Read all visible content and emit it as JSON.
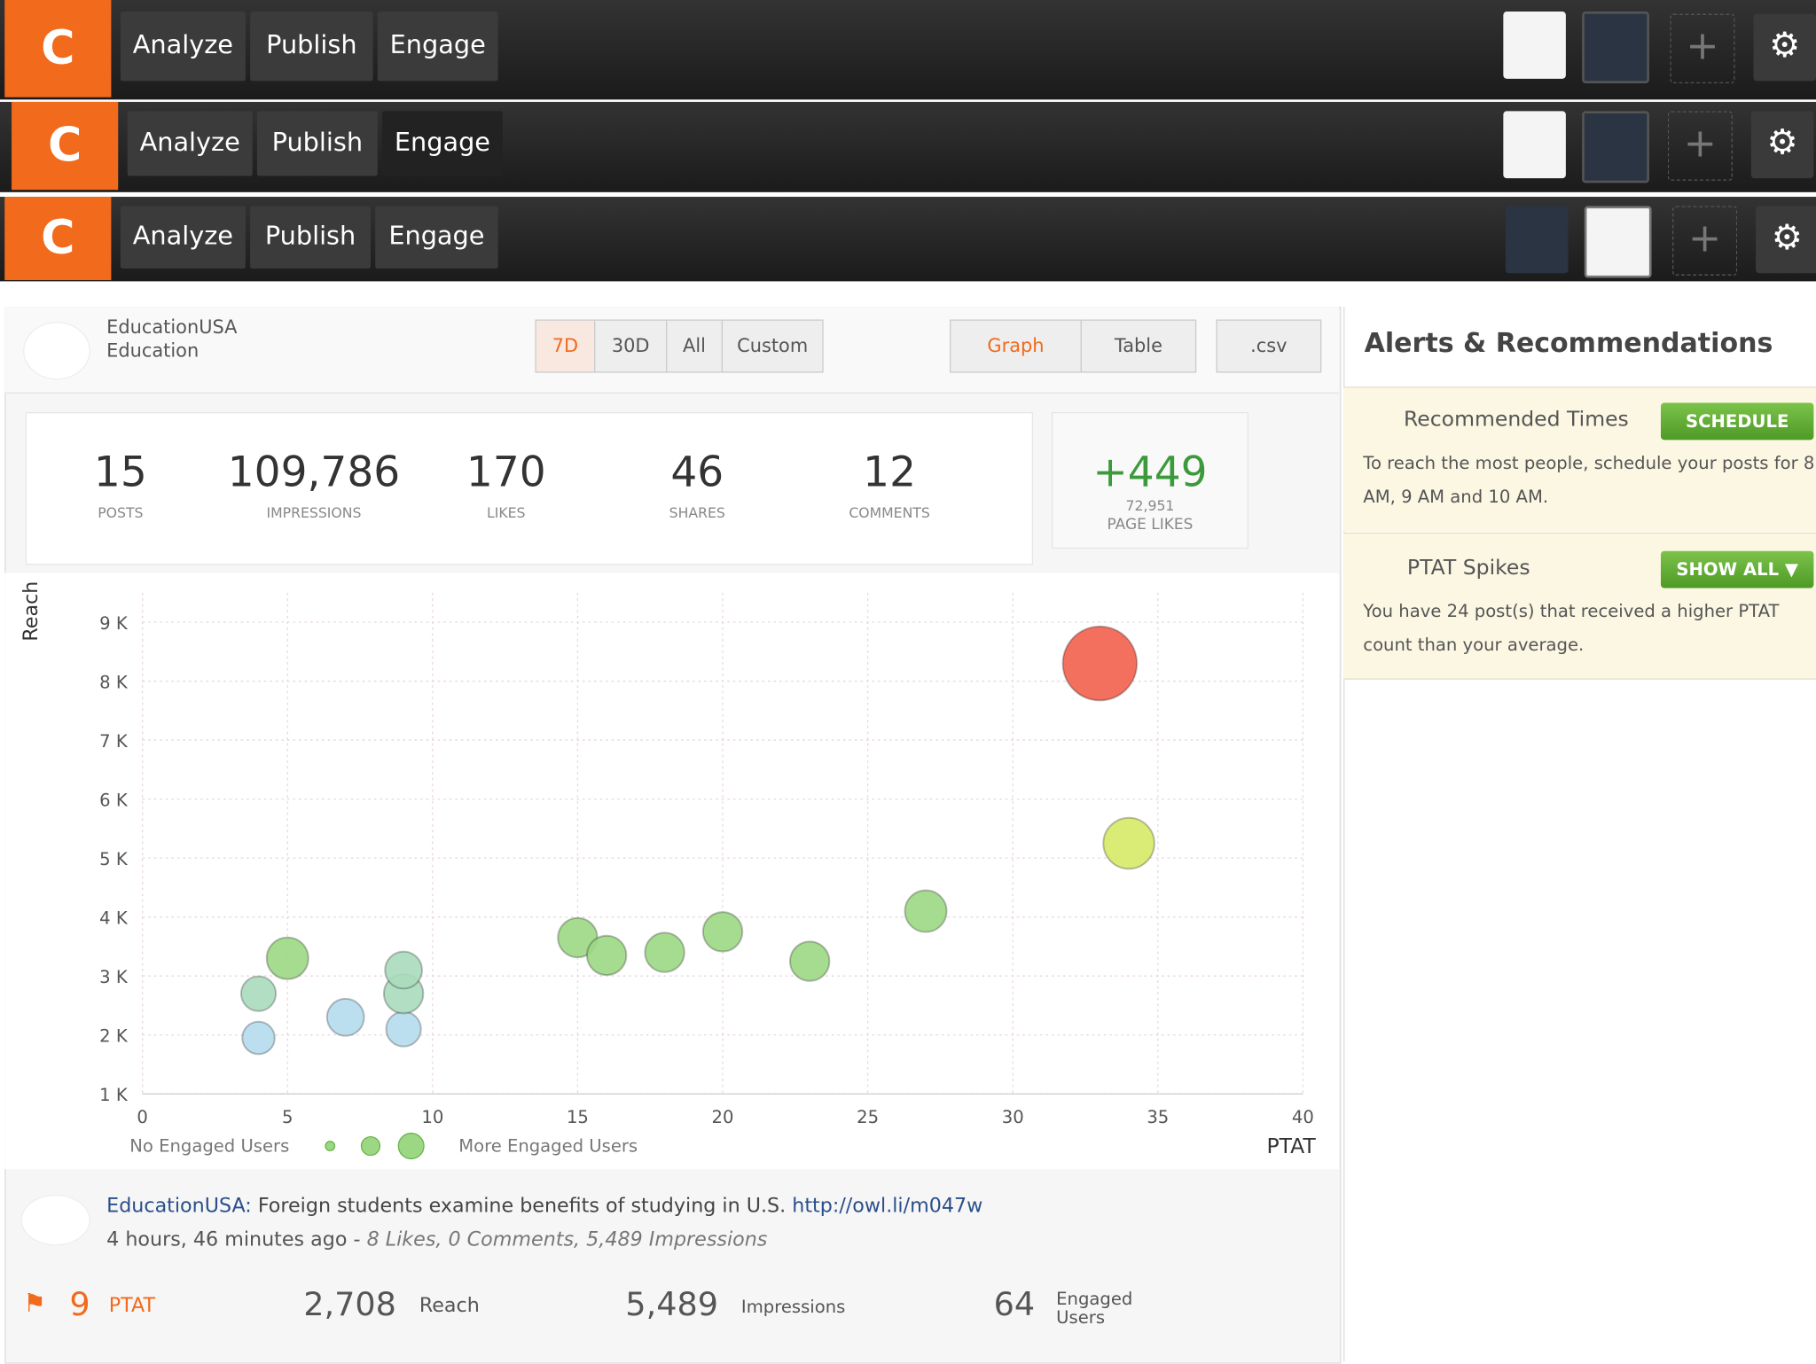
{
  "nav_bars": [
    {
      "logo": "C",
      "tabs": [
        "Analyze",
        "Publish",
        "Engage"
      ]
    },
    {
      "logo": "C",
      "tabs": [
        "Analyze",
        "Publish",
        "Engage"
      ]
    },
    {
      "logo": "C",
      "tabs": [
        "Analyze",
        "Publish",
        "Engage"
      ]
    }
  ],
  "account": {
    "name": "EducationUSA",
    "category": "Education"
  },
  "range_buttons": [
    "7D",
    "30D",
    "All",
    "Custom"
  ],
  "view_buttons": [
    "Graph",
    "Table"
  ],
  "export_button": ".csv",
  "stats": [
    {
      "value": "15",
      "label": "POSTS"
    },
    {
      "value": "109,786",
      "label": "IMPRESSIONS"
    },
    {
      "value": "170",
      "label": "LIKES"
    },
    {
      "value": "46",
      "label": "SHARES"
    },
    {
      "value": "12",
      "label": "COMMENTS"
    }
  ],
  "page_likes": {
    "change": "+449",
    "total": "72,951",
    "label": "PAGE LIKES"
  },
  "chart": {
    "type": "scatter",
    "y_label": "Reach",
    "x_label": "PTAT",
    "x": [
      4,
      4,
      5,
      7,
      9,
      9,
      9,
      15,
      16,
      18,
      20,
      23,
      27,
      34,
      33
    ],
    "values": [
      1950,
      2700,
      3300,
      2300,
      2100,
      2700,
      3100,
      3650,
      3350,
      3400,
      3750,
      3250,
      4100,
      5250,
      8300
    ],
    "sizes": [
      14,
      15,
      18,
      16,
      15,
      17,
      16,
      17,
      17,
      17,
      17,
      17,
      18,
      22,
      32
    ],
    "colors": [
      "#b5dcee",
      "#aadcbc",
      "#9cd884",
      "#b5dcee",
      "#b5dcee",
      "#aadcbc",
      "#aadcbc",
      "#9cd884",
      "#9cd884",
      "#9cd884",
      "#9cd884",
      "#9cd884",
      "#9cd884",
      "#d6ea66",
      "#f2604e"
    ],
    "xlim": [
      0,
      40
    ],
    "ylim": [
      1000,
      9500
    ],
    "xticks": [
      0,
      5,
      10,
      15,
      20,
      25,
      30,
      35,
      40
    ],
    "yticks": [
      {
        "value": 1000,
        "label": "1 K"
      },
      {
        "value": 2000,
        "label": "2 K"
      },
      {
        "value": 3000,
        "label": "3 K"
      },
      {
        "value": 4000,
        "label": "4 K"
      },
      {
        "value": 5000,
        "label": "5 K"
      },
      {
        "value": 6000,
        "label": "6 K"
      },
      {
        "value": 7000,
        "label": "7 K"
      },
      {
        "value": 8000,
        "label": "8 K"
      },
      {
        "value": 9000,
        "label": "9 K"
      }
    ],
    "grid": true,
    "legend": {
      "left": "No Engaged Users",
      "right": "More Engaged Users"
    }
  },
  "post": {
    "author": "EducationUSA:",
    "text": "Foreign students examine benefits of studying in U.S.",
    "link": "http://owl.li/m047w",
    "time": "4 hours, 46 minutes ago -",
    "summary": "8 Likes, 0 Comments, 5,489 Impressions",
    "metrics": [
      {
        "value": "9",
        "label": "PTAT"
      },
      {
        "value": "2,708",
        "label": "Reach"
      },
      {
        "value": "5,489",
        "label": "Impressions"
      },
      {
        "value": "64",
        "label": "Engaged Users"
      }
    ]
  },
  "alerts": {
    "title": "Alerts & Recommendations",
    "items": [
      {
        "title": "Recommended Times",
        "button": "SCHEDULE",
        "text": "To reach the most people, schedule your posts for 8 AM, 9 AM and 10 AM."
      },
      {
        "title": "PTAT Spikes",
        "button": "SHOW ALL ▼",
        "text": "You have 24 post(s) that received a higher PTAT count than your average."
      }
    ]
  }
}
